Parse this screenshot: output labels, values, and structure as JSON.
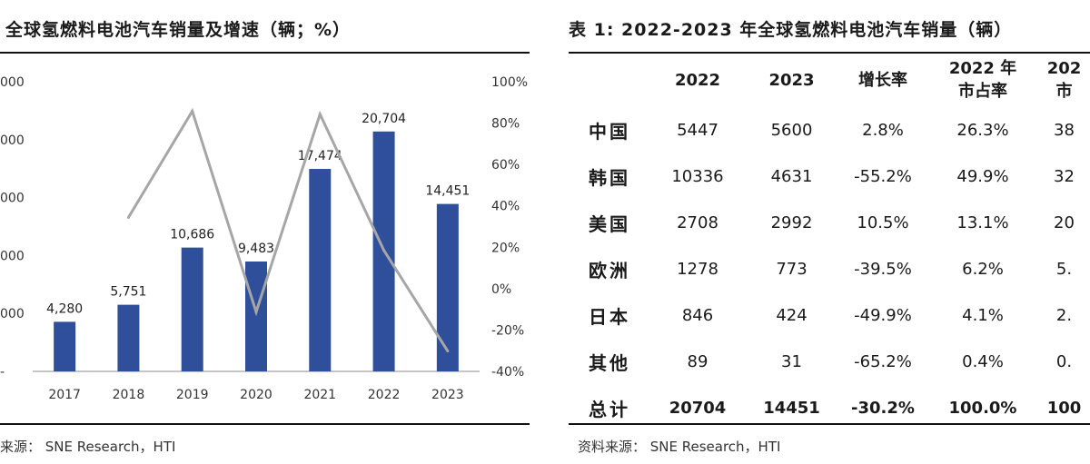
{
  "left_title": "全球氢燃料电池汽车销量及增速（辆；%）",
  "right_title": "表 1:  2022-2023 年全球氢燃料电池汽车销量（辆）",
  "source_left": "来源：  SNE Research，HTI",
  "source_right": "资料来源：  SNE Research，HTI",
  "colors": {
    "bar": "#2f4f9a",
    "line": "#a6a6a6",
    "axis": "#8c8c8c"
  },
  "chart_data": {
    "type": "bar",
    "categories": [
      "2017",
      "2018",
      "2019",
      "2020",
      "2021",
      "2022",
      "2023"
    ],
    "series": [
      {
        "values": [
          4280,
          5751,
          10686,
          9483,
          17474,
          20704,
          14451
        ],
        "type": "bar",
        "axis": "left"
      },
      {
        "values": [
          null,
          34.4,
          85.8,
          -11.3,
          84.3,
          18.5,
          -30.2
        ],
        "type": "line",
        "axis": "right"
      }
    ],
    "data_labels": [
      "4,280",
      "5,751",
      "10,686",
      "9,483",
      "17,474",
      "20,704",
      "14,451"
    ],
    "left_axis": {
      "ylim": [
        0,
        25000
      ],
      "tick_labels": [
        "000",
        "000",
        "000",
        "000",
        "000",
        "-"
      ]
    },
    "right_axis": {
      "ylim": [
        -40,
        100
      ],
      "ticks": [
        -40,
        -20,
        0,
        20,
        40,
        60,
        80,
        100
      ],
      "tick_labels": [
        "-40%",
        "-20%",
        "0%",
        "20%",
        "40%",
        "60%",
        "80%",
        "100%"
      ]
    },
    "grid": false,
    "legend": "none"
  },
  "table": {
    "headers": [
      "",
      "2022",
      "2023",
      "增长率",
      "2022 年\n市占率",
      "202\n市"
    ],
    "rows": [
      [
        "中国",
        "5447",
        "5600",
        "2.8%",
        "26.3%",
        "38"
      ],
      [
        "韩国",
        "10336",
        "4631",
        "-55.2%",
        "49.9%",
        "32"
      ],
      [
        "美国",
        "2708",
        "2992",
        "10.5%",
        "13.1%",
        "20"
      ],
      [
        "欧洲",
        "1278",
        "773",
        "-39.5%",
        "6.2%",
        "5."
      ],
      [
        "日本",
        "846",
        "424",
        "-49.9%",
        "4.1%",
        "2."
      ],
      [
        "其他",
        "89",
        "31",
        "-65.2%",
        "0.4%",
        "0."
      ]
    ],
    "total": [
      "总计",
      "20704",
      "14451",
      "-30.2%",
      "100.0%",
      "100"
    ]
  }
}
